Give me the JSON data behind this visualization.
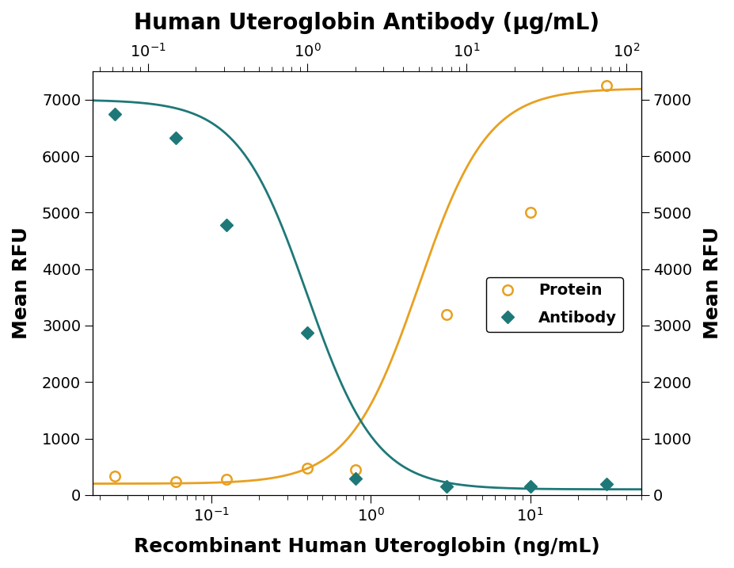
{
  "title_top": "Human Uteroglobin Antibody (μg/mL)",
  "xlabel_bottom": "Recombinant Human Uteroglobin (ng/mL)",
  "ylabel_left": "Mean RFU",
  "ylabel_right": "Mean RFU",
  "background_color": "#ffffff",
  "protein_x": [
    0.025,
    0.06,
    0.125,
    0.4,
    0.8,
    3.0,
    10.0,
    30.0
  ],
  "protein_y": [
    340,
    230,
    280,
    480,
    440,
    3200,
    5000,
    7250
  ],
  "protein_color": "#e8a020",
  "protein_label": "Protein",
  "antibody_x": [
    0.025,
    0.06,
    0.125,
    0.4,
    0.8,
    3.0,
    10.0,
    30.0
  ],
  "antibody_y": [
    6750,
    6320,
    4780,
    2880,
    290,
    155,
    155,
    200
  ],
  "antibody_color": "#1e7878",
  "antibody_label": "Antibody",
  "ylim": [
    0,
    7500
  ],
  "yticks": [
    0,
    1000,
    2000,
    3000,
    4000,
    5000,
    6000,
    7000
  ],
  "xbottom_lim": [
    0.018,
    50
  ],
  "xtop_lim": [
    0.045,
    125
  ],
  "title_fontsize": 20,
  "axis_label_fontsize": 18,
  "tick_fontsize": 14,
  "legend_fontsize": 14
}
